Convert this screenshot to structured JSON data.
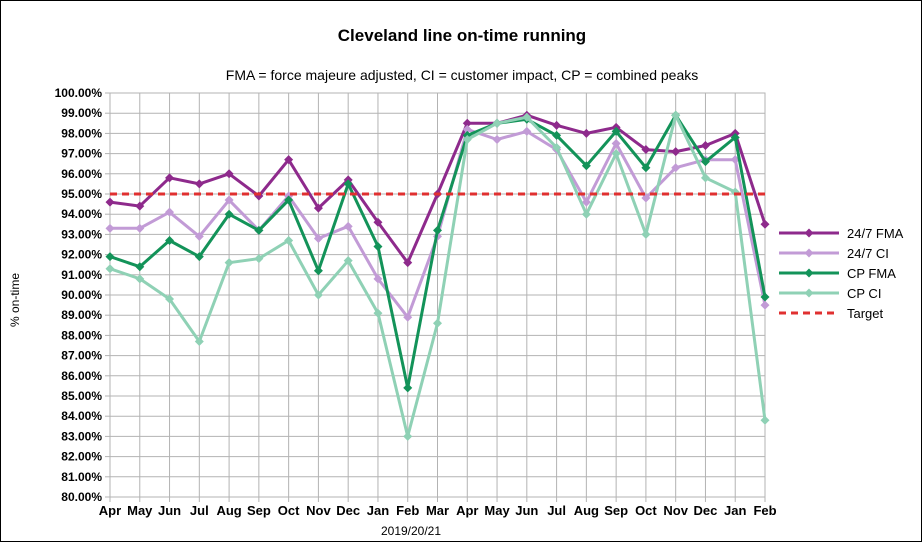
{
  "chart_data": {
    "type": "line",
    "title": "Cleveland line on-time running",
    "subtitle": "FMA = force majeure adjusted, CI = customer impact, CP = combined peaks",
    "xlabel": "2019/20/21",
    "ylabel": "% on-time",
    "ylim": [
      80,
      100
    ],
    "ytick_step": 1,
    "ytick_labels": [
      "80.00%",
      "81.00%",
      "82.00%",
      "83.00%",
      "84.00%",
      "85.00%",
      "86.00%",
      "87.00%",
      "88.00%",
      "89.00%",
      "90.00%",
      "91.00%",
      "92.00%",
      "93.00%",
      "94.00%",
      "95.00%",
      "96.00%",
      "97.00%",
      "98.00%",
      "99.00%",
      "100.00%"
    ],
    "categories": [
      "Apr",
      "May",
      "Jun",
      "Jul",
      "Aug",
      "Sep",
      "Oct",
      "Nov",
      "Dec",
      "Jan",
      "Feb",
      "Mar",
      "Apr",
      "May",
      "Jun",
      "Jul",
      "Aug",
      "Sep",
      "Oct",
      "Nov",
      "Dec",
      "Jan",
      "Feb"
    ],
    "grid": true,
    "legend_position": "right",
    "series": [
      {
        "name": "24/7 FMA",
        "color": "#8e2a8c",
        "style": "solid",
        "marker": "diamond",
        "values": [
          94.6,
          94.4,
          95.8,
          95.5,
          96.0,
          94.9,
          96.7,
          94.3,
          95.7,
          93.6,
          91.6,
          95.0,
          98.5,
          98.5,
          98.9,
          98.4,
          98.0,
          98.3,
          97.2,
          97.1,
          97.4,
          98.0,
          93.5
        ]
      },
      {
        "name": "24/7 CI",
        "color": "#c29bd6",
        "style": "solid",
        "marker": "diamond",
        "values": [
          93.3,
          93.3,
          94.1,
          92.9,
          94.7,
          93.2,
          94.9,
          92.8,
          93.4,
          90.8,
          88.9,
          92.9,
          98.2,
          97.7,
          98.1,
          97.2,
          94.6,
          97.5,
          94.8,
          96.3,
          96.7,
          96.7,
          89.5
        ]
      },
      {
        "name": "CP FMA",
        "color": "#139359",
        "style": "solid",
        "marker": "diamond",
        "values": [
          91.9,
          91.4,
          92.7,
          91.9,
          94.0,
          93.2,
          94.7,
          91.2,
          95.5,
          92.4,
          85.4,
          93.2,
          97.9,
          98.5,
          98.7,
          97.9,
          96.4,
          98.1,
          96.3,
          98.9,
          96.6,
          97.8,
          89.9
        ]
      },
      {
        "name": "CP CI",
        "color": "#8fd1b5",
        "style": "solid",
        "marker": "diamond",
        "values": [
          91.3,
          90.8,
          89.8,
          87.7,
          91.6,
          91.8,
          92.7,
          90.0,
          91.7,
          89.1,
          83.0,
          88.6,
          97.7,
          98.5,
          98.8,
          97.3,
          94.0,
          97.0,
          93.0,
          98.9,
          95.8,
          95.1,
          83.8
        ]
      },
      {
        "name": "Target",
        "color": "#e03030",
        "style": "dashed",
        "marker": "none",
        "values": [
          95,
          95,
          95,
          95,
          95,
          95,
          95,
          95,
          95,
          95,
          95,
          95,
          95,
          95,
          95,
          95,
          95,
          95,
          95,
          95,
          95,
          95,
          95
        ]
      }
    ]
  }
}
